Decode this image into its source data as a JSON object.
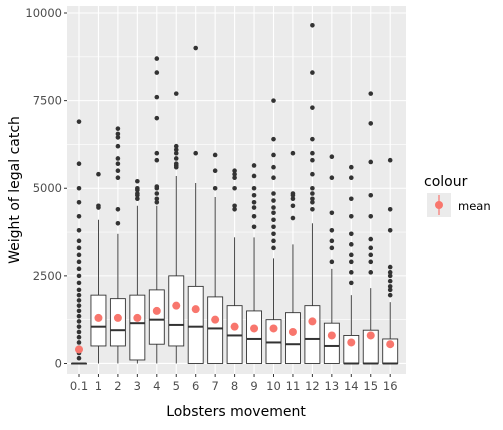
{
  "chart_data": {
    "type": "boxplot",
    "xlabel": "Lobsters movement",
    "ylabel": "Weight of legal catch",
    "categories": [
      "0.1",
      "1",
      "2",
      "3",
      "4",
      "5",
      "6",
      "7",
      "8",
      "9",
      "10",
      "11",
      "12",
      "13",
      "14",
      "15",
      "16"
    ],
    "ylim": [
      -300,
      10200
    ],
    "yticks": [
      0,
      2500,
      5000,
      7500,
      10000
    ],
    "ytick_labels": [
      "0",
      "2500",
      "5000",
      "7500",
      "10000"
    ],
    "grid": true,
    "boxes": [
      {
        "cat": "0.1",
        "q1": 0,
        "median": 0,
        "q3": 0,
        "lower": 0,
        "upper": 0,
        "mean": 400,
        "outliers": [
          6900,
          5700,
          5000,
          4600,
          4200,
          3800,
          3500,
          3300,
          3100,
          2900,
          2700,
          2500,
          2300,
          2100,
          1950,
          1800,
          1650,
          1500,
          1350,
          1200,
          1050,
          900,
          750,
          600,
          450,
          300,
          150
        ]
      },
      {
        "cat": "1",
        "q1": 500,
        "median": 1050,
        "q3": 1950,
        "lower": 0,
        "upper": 4100,
        "mean": 1300,
        "outliers": [
          4450,
          4500,
          5400
        ]
      },
      {
        "cat": "2",
        "q1": 500,
        "median": 950,
        "q3": 1850,
        "lower": 0,
        "upper": 3700,
        "mean": 1300,
        "outliers": [
          4000,
          4400,
          5300,
          5500,
          5700,
          5850,
          6200,
          6450,
          6550,
          6700
        ]
      },
      {
        "cat": "3",
        "q1": 100,
        "median": 1150,
        "q3": 1950,
        "lower": 0,
        "upper": 4500,
        "mean": 1300,
        "outliers": [
          4700,
          4800,
          4850,
          4950,
          5000,
          5200
        ]
      },
      {
        "cat": "4",
        "q1": 550,
        "median": 1250,
        "q3": 2100,
        "lower": 0,
        "upper": 4500,
        "mean": 1500,
        "outliers": [
          4600,
          4700,
          4850,
          5000,
          5050,
          5800,
          6000,
          7000,
          7600,
          8300,
          8700
        ]
      },
      {
        "cat": "5",
        "q1": 500,
        "median": 1100,
        "q3": 2500,
        "lower": 0,
        "upper": 5350,
        "mean": 1650,
        "outliers": [
          5600,
          5650,
          5700,
          5850,
          6000,
          6100,
          6200,
          7700
        ]
      },
      {
        "cat": "6",
        "q1": 0,
        "median": 1050,
        "q3": 2200,
        "lower": 0,
        "upper": 5150,
        "mean": 1550,
        "outliers": [
          6000,
          9000
        ]
      },
      {
        "cat": "7",
        "q1": 0,
        "median": 1000,
        "q3": 1900,
        "lower": 0,
        "upper": 4750,
        "mean": 1250,
        "outliers": [
          5000,
          5500,
          5950
        ]
      },
      {
        "cat": "8",
        "q1": 0,
        "median": 800,
        "q3": 1650,
        "lower": 0,
        "upper": 3600,
        "mean": 1050,
        "outliers": [
          4400,
          4500,
          5000,
          5300,
          5400,
          5500
        ]
      },
      {
        "cat": "9",
        "q1": 0,
        "median": 700,
        "q3": 1500,
        "lower": 0,
        "upper": 3600,
        "mean": 1000,
        "outliers": [
          3900,
          4200,
          4450,
          4600,
          4800,
          5000,
          5350,
          5650
        ]
      },
      {
        "cat": "10",
        "q1": 0,
        "median": 600,
        "q3": 1250,
        "lower": 0,
        "upper": 3000,
        "mean": 1000,
        "outliers": [
          3300,
          3500,
          3700,
          3900,
          4100,
          4300,
          4450,
          4650,
          4850,
          5300,
          5600,
          5950,
          6400,
          7500
        ]
      },
      {
        "cat": "11",
        "q1": 0,
        "median": 550,
        "q3": 1450,
        "lower": 0,
        "upper": 3400,
        "mean": 900,
        "outliers": [
          4150,
          4500,
          4700,
          4800,
          4850,
          6000
        ]
      },
      {
        "cat": "12",
        "q1": 0,
        "median": 700,
        "q3": 1650,
        "lower": 0,
        "upper": 4000,
        "mean": 1200,
        "outliers": [
          4400,
          4600,
          4700,
          4850,
          5000,
          5400,
          5800,
          6000,
          6400,
          7300,
          8300,
          9650
        ]
      },
      {
        "cat": "13",
        "q1": 0,
        "median": 500,
        "q3": 1150,
        "lower": 0,
        "upper": 2700,
        "mean": 800,
        "outliers": [
          2900,
          3300,
          3500,
          3800,
          4300,
          5300,
          5900
        ]
      },
      {
        "cat": "14",
        "q1": 0,
        "median": 0,
        "q3": 800,
        "lower": 0,
        "upper": 1950,
        "mean": 600,
        "outliers": [
          2300,
          2600,
          2900,
          3100,
          3400,
          3700,
          4200,
          4700,
          5300,
          5600
        ]
      },
      {
        "cat": "15",
        "q1": 0,
        "median": 0,
        "q3": 950,
        "lower": 0,
        "upper": 2150,
        "mean": 800,
        "outliers": [
          2600,
          2900,
          3100,
          3300,
          3550,
          4200,
          4800,
          5750,
          6850,
          7700
        ]
      },
      {
        "cat": "16",
        "q1": 0,
        "median": 0,
        "q3": 700,
        "lower": 0,
        "upper": 1750,
        "mean": 550,
        "outliers": [
          1950,
          2100,
          2200,
          2350,
          2500,
          2600,
          2750,
          3800,
          4400,
          5800
        ]
      }
    ],
    "legend": {
      "title": "colour",
      "label": "mean",
      "color": "#f8766d",
      "placement": "right"
    },
    "colors": {
      "panel": "#ebebeb",
      "grid": "#ffffff",
      "box_fill": "#ffffff",
      "box_line": "#333333",
      "mean": "#f8766d",
      "outlier": "#333333",
      "axis_text": "#4d4d4d",
      "title_text": "#000000"
    }
  }
}
